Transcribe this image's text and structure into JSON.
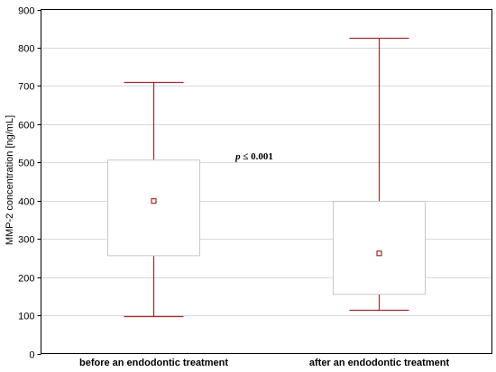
{
  "chart_data": {
    "type": "box",
    "ylabel": "MMP-2 concentration [ng/mL]",
    "ylim": [
      0,
      900
    ],
    "yticks": [
      0,
      100,
      200,
      300,
      400,
      500,
      600,
      700,
      800,
      900
    ],
    "grid": true,
    "categories": [
      "before an endodontic treatment",
      "after an endodontic treatment"
    ],
    "boxes": [
      {
        "category": "before an endodontic treatment",
        "whisker_low": 97,
        "q1": 256,
        "q3": 506,
        "whisker_high": 711,
        "center": 399
      },
      {
        "category": "after an endodontic treatment",
        "whisker_low": 114,
        "q1": 155,
        "q3": 398,
        "whisker_high": 826,
        "center": 262
      }
    ],
    "annotation": "p ≤ 0.001",
    "colors": {
      "whisker": "#a52a2a",
      "box": "#c8c8c8",
      "grid": "#d9d9d9",
      "axis": "#000000"
    }
  }
}
